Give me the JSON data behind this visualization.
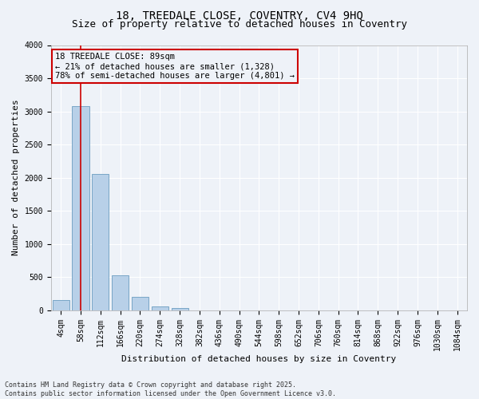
{
  "title_line1": "18, TREEDALE CLOSE, COVENTRY, CV4 9HQ",
  "title_line2": "Size of property relative to detached houses in Coventry",
  "xlabel": "Distribution of detached houses by size in Coventry",
  "ylabel": "Number of detached properties",
  "categories": [
    "4sqm",
    "58sqm",
    "112sqm",
    "166sqm",
    "220sqm",
    "274sqm",
    "328sqm",
    "382sqm",
    "436sqm",
    "490sqm",
    "544sqm",
    "598sqm",
    "652sqm",
    "706sqm",
    "760sqm",
    "814sqm",
    "868sqm",
    "922sqm",
    "976sqm",
    "1030sqm",
    "1084sqm"
  ],
  "bar_values": [
    150,
    3080,
    2060,
    520,
    195,
    60,
    30,
    0,
    0,
    0,
    0,
    0,
    0,
    0,
    0,
    0,
    0,
    0,
    0,
    0,
    0
  ],
  "bar_color": "#b8d0e8",
  "bar_edge_color": "#6a9cc0",
  "ylim": [
    0,
    4000
  ],
  "yticks": [
    0,
    500,
    1000,
    1500,
    2000,
    2500,
    3000,
    3500,
    4000
  ],
  "vline_x": 1,
  "vline_color": "#cc0000",
  "annotation_box_color": "#cc0000",
  "annotation_text_line1": "18 TREEDALE CLOSE: 89sqm",
  "annotation_text_line2": "← 21% of detached houses are smaller (1,328)",
  "annotation_text_line3": "78% of semi-detached houses are larger (4,801) →",
  "annotation_fontsize": 7.5,
  "footnote_line1": "Contains HM Land Registry data © Crown copyright and database right 2025.",
  "footnote_line2": "Contains public sector information licensed under the Open Government Licence v3.0.",
  "bg_color": "#eef2f8",
  "grid_color": "#ffffff",
  "title_fontsize": 10,
  "subtitle_fontsize": 9,
  "ylabel_fontsize": 8,
  "xlabel_fontsize": 8,
  "tick_fontsize": 7,
  "footnote_fontsize": 6
}
